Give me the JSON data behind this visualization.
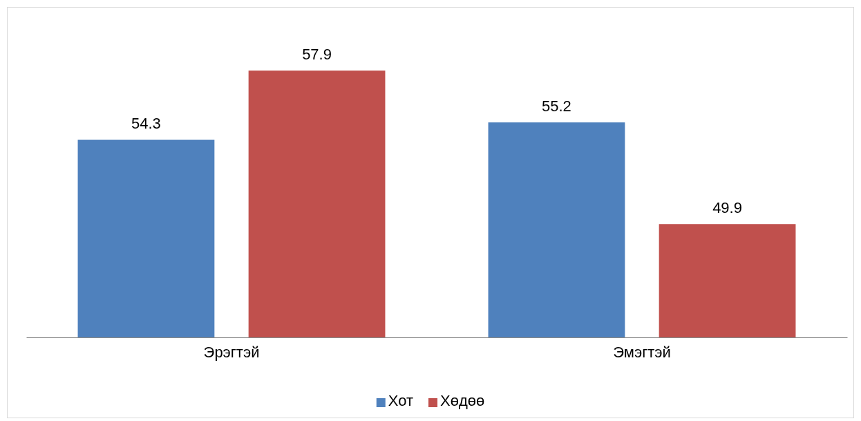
{
  "chart_data": {
    "type": "bar",
    "categories": [
      "Эрэгтэй",
      "Эмэгтэй"
    ],
    "series": [
      {
        "name": "Хот",
        "color": "#4f81bd",
        "values": [
          54.3,
          55.2
        ]
      },
      {
        "name": "Хөдөө",
        "color": "#c0504d",
        "values": [
          57.9,
          49.9
        ]
      }
    ],
    "ylim": [
      44,
      61.2
    ],
    "data_labels": true,
    "legend": "bottom"
  }
}
